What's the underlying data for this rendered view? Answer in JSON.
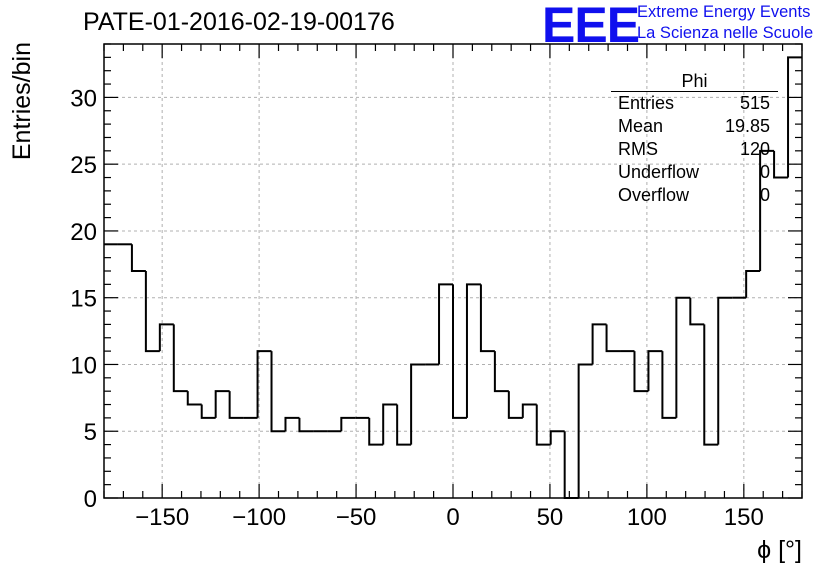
{
  "title": "PATE-01-2016-02-19-00176",
  "logo": {
    "mark": "EEE",
    "line1": "Extreme Energy Events",
    "line2": "La Scienza nelle Scuole",
    "color": "#1010ee"
  },
  "stats_box": {
    "name": "Phi",
    "rows": [
      {
        "label": "Entries",
        "value": "515"
      },
      {
        "label": "Mean",
        "value": "19.85"
      },
      {
        "label": "RMS",
        "value": "120"
      },
      {
        "label": "Underflow",
        "value": "0"
      },
      {
        "label": "Overflow",
        "value": "0"
      }
    ]
  },
  "chart_data": {
    "type": "histogram",
    "title": "PATE-01-2016-02-19-00176",
    "xlabel": "ϕ [°]",
    "ylabel": "Entries/bin",
    "xlim": [
      -180,
      180
    ],
    "ylim": [
      0,
      34
    ],
    "x_ticks": [
      -150,
      -100,
      -50,
      0,
      50,
      100,
      150
    ],
    "x_tick_labels": [
      "−150",
      "−100",
      "−50",
      "0",
      "50",
      "100",
      "150"
    ],
    "y_ticks": [
      0,
      5,
      10,
      15,
      20,
      25,
      30
    ],
    "y_tick_labels": [
      "0",
      "5",
      "10",
      "15",
      "20",
      "25",
      "30"
    ],
    "grid": true,
    "bin_edges_start": -180,
    "bin_width": 7.2,
    "values": [
      19,
      19,
      17,
      11,
      13,
      8,
      7,
      6,
      8,
      6,
      6,
      11,
      5,
      6,
      5,
      5,
      5,
      6,
      6,
      4,
      7,
      4,
      10,
      10,
      16,
      6,
      16,
      11,
      8,
      6,
      7,
      4,
      5,
      0,
      10,
      13,
      11,
      11,
      8,
      11,
      6,
      15,
      13,
      4,
      15,
      15,
      17,
      26,
      24,
      33
    ],
    "line_color": "#000000"
  }
}
